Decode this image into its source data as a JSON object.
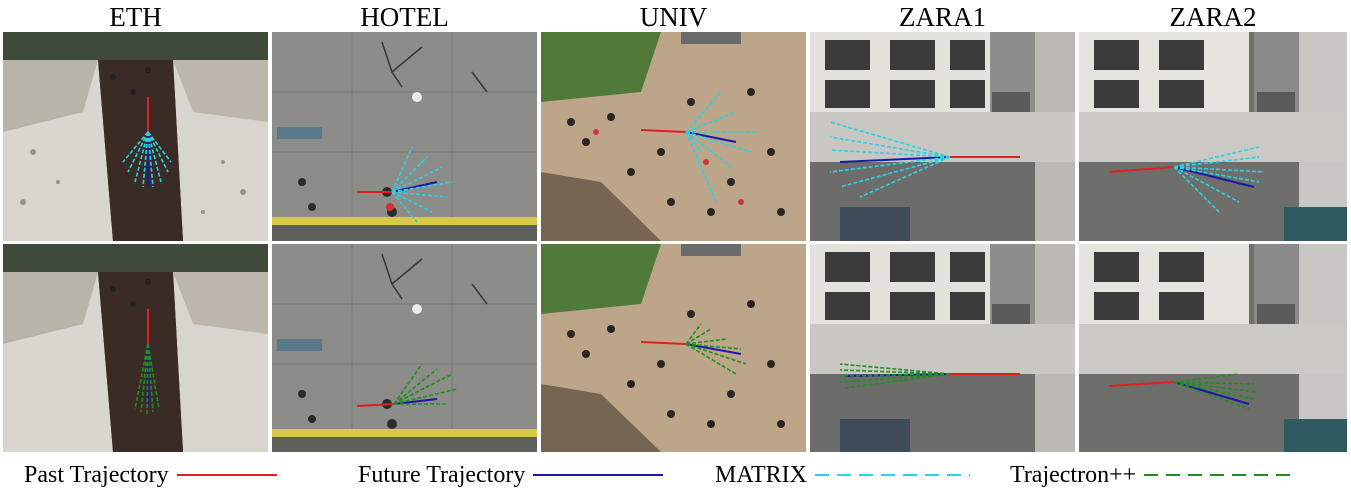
{
  "columns": [
    "ETH",
    "HOTEL",
    "UNIV",
    "ZARA1",
    "ZARA2"
  ],
  "rows": [
    {
      "method": "MATRIX",
      "color": "#29d3e6"
    },
    {
      "method": "Trajectron++",
      "color": "#1f8f1f"
    }
  ],
  "legend": [
    {
      "label": "Past Trajectory",
      "color": "#e02020",
      "style": "solid"
    },
    {
      "label": "Future Trajectory",
      "color": "#1a1aa8",
      "style": "solid"
    },
    {
      "label": "MATRIX",
      "color": "#29d3e6",
      "style": "dashed"
    },
    {
      "label": "Trajectron++",
      "color": "#1f8f1f",
      "style": "dashed"
    }
  ]
}
